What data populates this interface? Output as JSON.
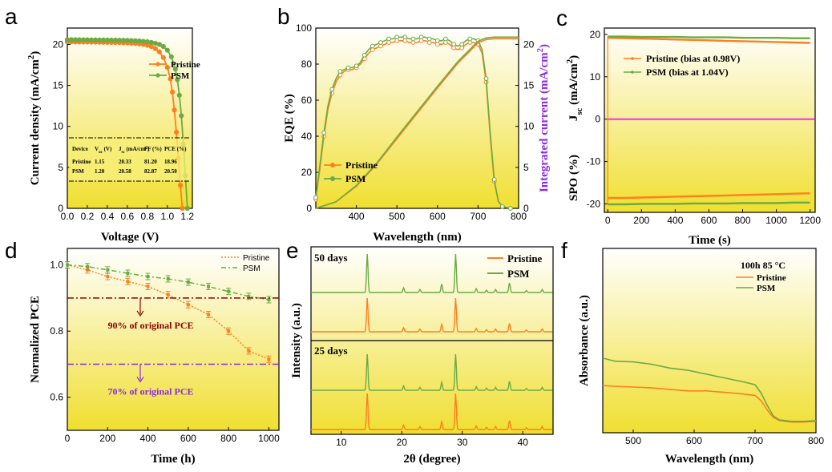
{
  "colors": {
    "pristine": "#ff7f1e",
    "psm": "#6aab45",
    "integrated": "#8a2be2",
    "spo_line": "#ff00ff",
    "dark_red_line": "#8b0000",
    "purple_line": "#8a2be2",
    "grad_top": "#ffffff",
    "grad_bottom": "#f0df30"
  },
  "chart_data": [
    {
      "panel": "a",
      "type": "line",
      "xlabel": "Voltage (V)",
      "ylabel": "Current density (mA/cm2)",
      "xlim": [
        0.0,
        1.25
      ],
      "ylim": [
        0,
        22
      ],
      "xticks": [
        "0.0",
        "0.2",
        "0.4",
        "0.6",
        "0.8",
        "1.0",
        "1.2"
      ],
      "yticks": [
        "0",
        "5",
        "10",
        "15",
        "20"
      ],
      "series": [
        {
          "name": "Pristine",
          "x": [
            0,
            0.04,
            0.08,
            0.12,
            0.16,
            0.2,
            0.24,
            0.28,
            0.32,
            0.36,
            0.4,
            0.44,
            0.48,
            0.52,
            0.56,
            0.6,
            0.64,
            0.68,
            0.72,
            0.76,
            0.8,
            0.84,
            0.88,
            0.92,
            0.96,
            1.0,
            1.03,
            1.05,
            1.07,
            1.09,
            1.11,
            1.13,
            1.15
          ],
          "y": [
            20.33,
            20.32,
            20.31,
            20.3,
            20.3,
            20.29,
            20.28,
            20.28,
            20.27,
            20.26,
            20.25,
            20.24,
            20.23,
            20.22,
            20.2,
            20.18,
            20.15,
            20.12,
            20.07,
            20.0,
            19.9,
            19.75,
            19.5,
            19.1,
            18.4,
            17.2,
            15.8,
            14.2,
            12.0,
            9.3,
            6.1,
            2.8,
            0.0
          ]
        },
        {
          "name": "PSM",
          "x": [
            0,
            0.04,
            0.08,
            0.12,
            0.16,
            0.2,
            0.24,
            0.28,
            0.32,
            0.36,
            0.4,
            0.44,
            0.48,
            0.52,
            0.56,
            0.6,
            0.64,
            0.68,
            0.72,
            0.76,
            0.8,
            0.84,
            0.88,
            0.92,
            0.96,
            1.0,
            1.04,
            1.08,
            1.1,
            1.12,
            1.14,
            1.16,
            1.18,
            1.2
          ],
          "y": [
            20.58,
            20.58,
            20.57,
            20.57,
            20.56,
            20.56,
            20.55,
            20.55,
            20.54,
            20.54,
            20.53,
            20.52,
            20.52,
            20.51,
            20.5,
            20.49,
            20.47,
            20.45,
            20.42,
            20.38,
            20.33,
            20.25,
            20.15,
            20.0,
            19.75,
            19.3,
            18.5,
            17.0,
            15.7,
            13.8,
            11.3,
            7.8,
            4.0,
            0.0
          ]
        }
      ],
      "legend": [
        "Pristine",
        "PSM"
      ],
      "table": {
        "headers": [
          "Device",
          "Voc (V)",
          "Jsc (mA/cm2)",
          "FF (%)",
          "PCE (%)"
        ],
        "rows": [
          [
            "Pristine",
            "1.15",
            "20.33",
            "81.20",
            "18.96"
          ],
          [
            "PSM",
            "1.20",
            "20.58",
            "82.87",
            "20.50"
          ]
        ]
      }
    },
    {
      "panel": "b",
      "type": "line",
      "xlabel": "Wavelength (nm)",
      "ylabel": "EQE (%)",
      "ylabel_right": "Integrated current (mA/cm2)",
      "xlim": [
        300,
        800
      ],
      "ylim": [
        0,
        100
      ],
      "ylim_right": [
        0,
        22
      ],
      "xticks": [
        "400",
        "500",
        "600",
        "700",
        "800"
      ],
      "yticks": [
        "0",
        "20",
        "40",
        "60",
        "80",
        "100"
      ],
      "yticks_right": [
        "0",
        "5",
        "10",
        "15",
        "20"
      ],
      "series": [
        {
          "name": "Pristine",
          "x": [
            300,
            310,
            320,
            330,
            340,
            350,
            360,
            370,
            380,
            390,
            400,
            410,
            420,
            430,
            440,
            450,
            460,
            470,
            480,
            490,
            500,
            510,
            520,
            530,
            540,
            550,
            560,
            570,
            580,
            590,
            600,
            610,
            620,
            630,
            640,
            650,
            660,
            670,
            680,
            690,
            700,
            710,
            720,
            730,
            740,
            750,
            760,
            770,
            780
          ],
          "y": [
            5,
            22,
            40,
            55,
            64,
            70,
            74,
            76,
            77,
            77,
            78,
            80,
            83,
            86,
            88,
            89,
            90,
            91,
            92,
            92,
            93,
            93,
            93,
            92,
            92,
            92,
            93,
            93,
            92,
            92,
            91,
            91,
            92,
            91,
            89,
            88,
            89,
            91,
            92,
            92,
            91,
            86,
            70,
            40,
            15,
            4,
            1,
            0.5,
            0
          ]
        },
        {
          "name": "PSM",
          "x": [
            300,
            310,
            320,
            330,
            340,
            350,
            360,
            370,
            380,
            390,
            400,
            410,
            420,
            430,
            440,
            450,
            460,
            470,
            480,
            490,
            500,
            510,
            520,
            530,
            540,
            550,
            560,
            570,
            580,
            590,
            600,
            610,
            620,
            630,
            640,
            650,
            660,
            670,
            680,
            690,
            700,
            710,
            720,
            730,
            740,
            750,
            760,
            770,
            780
          ],
          "y": [
            6,
            24,
            42,
            57,
            66,
            72,
            76,
            77,
            78,
            78,
            79,
            81,
            85,
            88,
            90,
            91,
            92,
            93,
            94,
            94,
            95,
            95,
            95,
            94,
            94,
            94,
            95,
            95,
            94,
            94,
            93,
            93,
            94,
            93,
            91,
            90,
            91,
            93,
            94,
            94,
            93,
            88,
            72,
            42,
            16,
            4,
            1,
            0.5,
            0
          ]
        }
      ],
      "integrated_series": [
        {
          "name": "Pristine",
          "x": [
            300,
            350,
            400,
            450,
            500,
            550,
            600,
            650,
            700,
            720,
            740,
            760,
            780,
            800
          ],
          "y": [
            0,
            0.8,
            2.7,
            5.4,
            8.5,
            11.6,
            14.7,
            17.7,
            20.2,
            20.6,
            20.7,
            20.7,
            20.7,
            20.7
          ]
        },
        {
          "name": "PSM",
          "x": [
            300,
            350,
            400,
            450,
            500,
            550,
            600,
            650,
            700,
            720,
            740,
            760,
            780,
            800
          ],
          "y": [
            0,
            0.8,
            2.8,
            5.5,
            8.7,
            11.8,
            14.9,
            17.9,
            20.4,
            20.8,
            20.9,
            20.9,
            20.9,
            20.9
          ]
        }
      ],
      "legend": [
        "Pristine",
        "PSM"
      ]
    },
    {
      "panel": "c",
      "type": "line",
      "xlabel": "Time (s)",
      "ylabel_top": "Jsc (mA/cm2)",
      "ylabel_bottom": "SPO (%)",
      "xlim": [
        -20,
        1230
      ],
      "ylim": [
        -22,
        21.5
      ],
      "xticks": [
        "0",
        "200",
        "400",
        "600",
        "800",
        "1000",
        "1200"
      ],
      "yticks": [
        "-20",
        "-10",
        "0",
        "10",
        "20"
      ],
      "series": [
        {
          "name": "Pristine (bias at 0.98V)",
          "x": [
            0,
            100,
            200,
            300,
            400,
            500,
            600,
            700,
            800,
            900,
            1000,
            1100,
            1200
          ],
          "y_jsc": [
            19.2,
            19.1,
            19.0,
            18.9,
            18.8,
            18.7,
            18.6,
            18.5,
            18.4,
            18.3,
            18.2,
            18.1,
            18.0
          ],
          "y_spo": [
            -18.6,
            -18.6,
            -18.5,
            -18.4,
            -18.3,
            -18.2,
            -18.1,
            -18.0,
            -17.9,
            -17.8,
            -17.7,
            -17.6,
            -17.5
          ]
        },
        {
          "name": "PSM  (bias at 1.04V)",
          "x": [
            0,
            100,
            200,
            300,
            400,
            500,
            600,
            700,
            800,
            900,
            1000,
            1100,
            1200
          ],
          "y_jsc": [
            19.5,
            19.5,
            19.4,
            19.4,
            19.4,
            19.3,
            19.3,
            19.3,
            19.2,
            19.2,
            19.2,
            19.1,
            19.1
          ],
          "y_spo": [
            -20.1,
            -20.1,
            -20.0,
            -20.0,
            -20.0,
            -19.9,
            -19.9,
            -19.9,
            -19.8,
            -19.8,
            -19.8,
            -19.7,
            -19.7
          ]
        }
      ],
      "zero_line": 0
    },
    {
      "panel": "d",
      "type": "line",
      "xlabel": "Time (h)",
      "ylabel": "Normalized PCE",
      "xlim": [
        0,
        1050
      ],
      "ylim": [
        0.5,
        1.05
      ],
      "xticks": [
        "0",
        "200",
        "400",
        "600",
        "800",
        "1000"
      ],
      "yticks": [
        "0.6",
        "0.8",
        "1.0"
      ],
      "series": [
        {
          "name": "Pristine",
          "x": [
            0,
            100,
            200,
            300,
            400,
            500,
            600,
            700,
            800,
            900,
            1000
          ],
          "y": [
            1.0,
            0.985,
            0.965,
            0.95,
            0.935,
            0.91,
            0.88,
            0.85,
            0.8,
            0.74,
            0.715
          ]
        },
        {
          "name": "PSM",
          "x": [
            0,
            100,
            200,
            300,
            400,
            500,
            600,
            700,
            800,
            900,
            1000
          ],
          "y": [
            1.0,
            0.995,
            0.985,
            0.975,
            0.965,
            0.958,
            0.948,
            0.935,
            0.92,
            0.905,
            0.895
          ]
        }
      ],
      "hlines": [
        {
          "y": 0.9,
          "label": "90% of original PCE"
        },
        {
          "y": 0.7,
          "label": "70% of original PCE"
        }
      ]
    },
    {
      "panel": "e",
      "type": "line",
      "xlabel": "2θ (degree)",
      "ylabel": "Intensity (a.u.)",
      "xlim": [
        5,
        45
      ],
      "xticks": [
        "10",
        "20",
        "30",
        "40"
      ],
      "subplots": [
        "50 days",
        "25 days"
      ],
      "peaks_2theta": [
        14.3,
        20.3,
        23.0,
        26.6,
        28.9,
        32.3,
        34.0,
        35.5,
        37.8,
        40.6,
        43.2
      ],
      "peaks_rel_height": [
        1.0,
        0.12,
        0.08,
        0.22,
        1.0,
        0.1,
        0.06,
        0.08,
        0.25,
        0.05,
        0.08
      ],
      "series": [
        {
          "name": "Pristine"
        },
        {
          "name": "PSM"
        }
      ]
    },
    {
      "panel": "f",
      "type": "line",
      "xlabel": "Wavelength (nm)",
      "ylabel": "Absorbance (a.u.)",
      "xlim": [
        450,
        800
      ],
      "xticks": [
        "500",
        "600",
        "700",
        "800"
      ],
      "annotation": "100h 85 °C",
      "series": [
        {
          "name": "Pristine",
          "x": [
            450,
            470,
            500,
            530,
            560,
            590,
            620,
            650,
            680,
            700,
            710,
            720,
            730,
            740,
            760,
            780,
            800
          ],
          "y": [
            0.62,
            0.61,
            0.6,
            0.59,
            0.57,
            0.55,
            0.55,
            0.53,
            0.51,
            0.49,
            0.42,
            0.3,
            0.2,
            0.16,
            0.14,
            0.14,
            0.15
          ]
        },
        {
          "name": "PSM",
          "x": [
            450,
            470,
            500,
            530,
            560,
            590,
            620,
            650,
            680,
            700,
            710,
            720,
            730,
            740,
            760,
            780,
            800
          ],
          "y": [
            0.98,
            0.94,
            0.93,
            0.9,
            0.85,
            0.82,
            0.77,
            0.72,
            0.67,
            0.63,
            0.52,
            0.36,
            0.22,
            0.17,
            0.15,
            0.15,
            0.16
          ]
        }
      ]
    }
  ]
}
